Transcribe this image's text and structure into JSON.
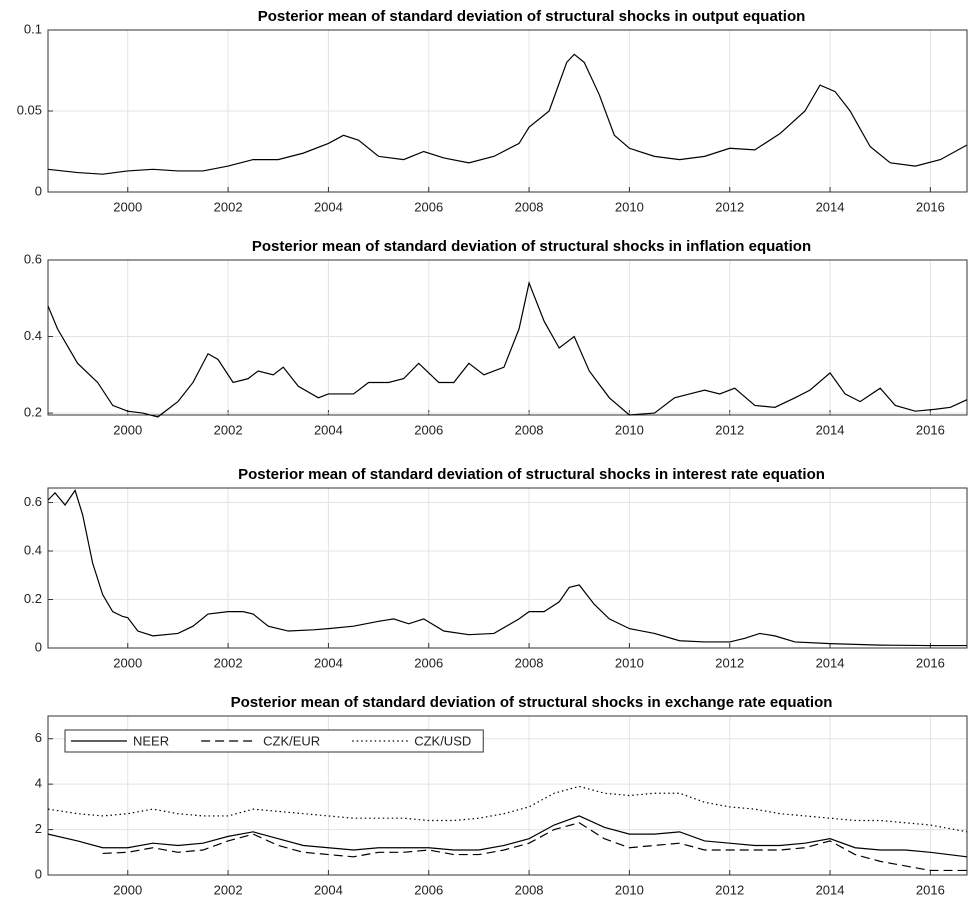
{
  "chart_data": [
    {
      "type": "line",
      "title": "Posterior mean of standard deviation of structural shocks in output equation",
      "x": [
        1998.41,
        1999,
        1999.5,
        2000,
        2000.5,
        2001,
        2001.5,
        2002,
        2002.5,
        2003,
        2003.5,
        2004,
        2004.3,
        2004.6,
        2005,
        2005.5,
        2005.9,
        2006.3,
        2006.8,
        2007.3,
        2007.8,
        2008,
        2008.4,
        2008.75,
        2008.9,
        2009.1,
        2009.4,
        2009.7,
        2010,
        2010.5,
        2011,
        2011.5,
        2012,
        2012.5,
        2013,
        2013.5,
        2013.8,
        2014.1,
        2014.4,
        2014.8,
        2015.2,
        2015.7,
        2016.2,
        2016.73
      ],
      "series": [
        {
          "color": "#000000",
          "line_style": "solid",
          "values": [
            0.014,
            0.012,
            0.011,
            0.013,
            0.014,
            0.013,
            0.013,
            0.016,
            0.02,
            0.02,
            0.024,
            0.03,
            0.035,
            0.032,
            0.022,
            0.02,
            0.025,
            0.021,
            0.018,
            0.022,
            0.03,
            0.04,
            0.05,
            0.08,
            0.085,
            0.08,
            0.06,
            0.035,
            0.027,
            0.022,
            0.02,
            0.022,
            0.027,
            0.026,
            0.036,
            0.05,
            0.066,
            0.062,
            0.05,
            0.028,
            0.018,
            0.016,
            0.02,
            0.029
          ]
        }
      ],
      "xlim": [
        1998.41,
        2016.73
      ],
      "xticks": [
        2000,
        2002,
        2004,
        2006,
        2008,
        2010,
        2012,
        2014,
        2016
      ],
      "ylim": [
        0,
        0.1
      ],
      "yticks": [
        0,
        0.05,
        0.1
      ],
      "grid": true
    },
    {
      "type": "line",
      "title": "Posterior mean of standard deviation of structural shocks in inflation equation",
      "x": [
        1998.41,
        1998.6,
        1999,
        1999.4,
        1999.7,
        2000,
        2000.3,
        2000.6,
        2001,
        2001.3,
        2001.6,
        2001.8,
        2002.1,
        2002.4,
        2002.6,
        2002.9,
        2003.1,
        2003.4,
        2003.8,
        2004,
        2004.5,
        2004.8,
        2005.2,
        2005.5,
        2005.8,
        2006.2,
        2006.5,
        2006.8,
        2007.1,
        2007.5,
        2007.8,
        2008,
        2008.3,
        2008.6,
        2008.9,
        2009.2,
        2009.6,
        2010,
        2010.5,
        2010.9,
        2011.2,
        2011.5,
        2011.8,
        2012.1,
        2012.5,
        2012.9,
        2013.3,
        2013.6,
        2014,
        2014.3,
        2014.6,
        2015,
        2015.3,
        2015.7,
        2016.1,
        2016.4,
        2016.73
      ],
      "series": [
        {
          "color": "#000000",
          "line_style": "solid",
          "values": [
            0.48,
            0.42,
            0.33,
            0.28,
            0.22,
            0.205,
            0.2,
            0.19,
            0.23,
            0.28,
            0.355,
            0.34,
            0.28,
            0.29,
            0.31,
            0.3,
            0.32,
            0.27,
            0.24,
            0.25,
            0.25,
            0.28,
            0.28,
            0.29,
            0.33,
            0.28,
            0.28,
            0.33,
            0.3,
            0.32,
            0.42,
            0.54,
            0.44,
            0.37,
            0.4,
            0.31,
            0.24,
            0.195,
            0.2,
            0.24,
            0.25,
            0.26,
            0.25,
            0.265,
            0.22,
            0.215,
            0.24,
            0.26,
            0.305,
            0.25,
            0.23,
            0.265,
            0.22,
            0.205,
            0.21,
            0.215,
            0.235
          ]
        }
      ],
      "xlim": [
        1998.41,
        2016.73
      ],
      "xticks": [
        2000,
        2002,
        2004,
        2006,
        2008,
        2010,
        2012,
        2014,
        2016
      ],
      "ylim": [
        0.195,
        0.6
      ],
      "yticks": [
        0.2,
        0.4,
        0.6
      ],
      "grid": true
    },
    {
      "type": "line",
      "title": "Posterior mean of standard deviation of structural shocks in interest rate equation",
      "x": [
        1998.41,
        1998.55,
        1998.75,
        1998.95,
        1999.1,
        1999.3,
        1999.5,
        1999.7,
        1999.9,
        2000,
        2000.2,
        2000.5,
        2001,
        2001.3,
        2001.6,
        2002,
        2002.3,
        2002.5,
        2002.8,
        2003.2,
        2003.7,
        2004,
        2004.5,
        2005,
        2005.3,
        2005.6,
        2005.9,
        2006.3,
        2006.8,
        2007.3,
        2007.8,
        2008,
        2008.3,
        2008.6,
        2008.8,
        2009,
        2009.3,
        2009.6,
        2010,
        2010.5,
        2011,
        2011.5,
        2012,
        2012.3,
        2012.6,
        2012.9,
        2013.3,
        2014,
        2015,
        2016,
        2016.73
      ],
      "series": [
        {
          "color": "#000000",
          "line_style": "solid",
          "values": [
            0.61,
            0.64,
            0.59,
            0.65,
            0.55,
            0.35,
            0.22,
            0.15,
            0.13,
            0.125,
            0.07,
            0.05,
            0.06,
            0.09,
            0.14,
            0.15,
            0.15,
            0.14,
            0.09,
            0.07,
            0.075,
            0.08,
            0.09,
            0.11,
            0.12,
            0.1,
            0.12,
            0.07,
            0.055,
            0.06,
            0.12,
            0.15,
            0.15,
            0.19,
            0.25,
            0.26,
            0.18,
            0.12,
            0.08,
            0.06,
            0.03,
            0.025,
            0.025,
            0.04,
            0.06,
            0.05,
            0.025,
            0.018,
            0.012,
            0.01,
            0.01
          ]
        }
      ],
      "xlim": [
        1998.41,
        2016.73
      ],
      "xticks": [
        2000,
        2002,
        2004,
        2006,
        2008,
        2010,
        2012,
        2014,
        2016
      ],
      "ylim": [
        0,
        0.66
      ],
      "yticks": [
        0,
        0.2,
        0.4,
        0.6
      ],
      "grid": true
    },
    {
      "type": "line",
      "title": "Posterior mean of standard deviation of structural shocks in exchange rate equation",
      "x": [
        1998.41,
        1999,
        1999.5,
        2000,
        2000.5,
        2001,
        2001.5,
        2002,
        2002.5,
        2003,
        2003.5,
        2004,
        2004.5,
        2005,
        2005.5,
        2006,
        2006.5,
        2007,
        2007.5,
        2008,
        2008.5,
        2009,
        2009.5,
        2010,
        2010.5,
        2011,
        2011.5,
        2012,
        2012.5,
        2013,
        2013.5,
        2014,
        2014.5,
        2015,
        2015.5,
        2016,
        2016.73
      ],
      "series": [
        {
          "name": "NEER",
          "color": "#000000",
          "line_style": "solid",
          "values": [
            1.8,
            1.5,
            1.2,
            1.2,
            1.4,
            1.3,
            1.4,
            1.7,
            1.9,
            1.6,
            1.3,
            1.2,
            1.1,
            1.2,
            1.2,
            1.2,
            1.1,
            1.1,
            1.3,
            1.6,
            2.2,
            2.6,
            2.1,
            1.8,
            1.8,
            1.9,
            1.5,
            1.4,
            1.3,
            1.3,
            1.4,
            1.6,
            1.2,
            1.1,
            1.1,
            1.0,
            0.8
          ]
        },
        {
          "name": "CZK/EUR",
          "color": "#000000",
          "line_style": "dashed",
          "values": [
            null,
            null,
            0.95,
            1.0,
            1.2,
            1.0,
            1.1,
            1.5,
            1.8,
            1.3,
            1.0,
            0.9,
            0.8,
            1.0,
            1.0,
            1.1,
            0.9,
            0.9,
            1.1,
            1.4,
            2.0,
            2.3,
            1.6,
            1.2,
            1.3,
            1.4,
            1.1,
            1.1,
            1.1,
            1.1,
            1.2,
            1.5,
            0.9,
            0.6,
            0.4,
            0.2,
            0.2
          ]
        },
        {
          "name": "CZK/USD",
          "color": "#000000",
          "line_style": "dotted",
          "values": [
            2.9,
            2.7,
            2.6,
            2.7,
            2.9,
            2.7,
            2.6,
            2.6,
            2.9,
            2.8,
            2.7,
            2.6,
            2.5,
            2.5,
            2.5,
            2.4,
            2.4,
            2.5,
            2.7,
            3.0,
            3.6,
            3.9,
            3.6,
            3.5,
            3.6,
            3.6,
            3.2,
            3.0,
            2.9,
            2.7,
            2.6,
            2.5,
            2.4,
            2.4,
            2.3,
            2.2,
            1.9
          ]
        }
      ],
      "xlim": [
        1998.41,
        2016.73
      ],
      "xticks": [
        2000,
        2002,
        2004,
        2006,
        2008,
        2010,
        2012,
        2014,
        2016
      ],
      "ylim": [
        0,
        7
      ],
      "yticks": [
        0,
        2,
        4,
        6
      ],
      "grid": true,
      "legend": "upper-left"
    }
  ]
}
